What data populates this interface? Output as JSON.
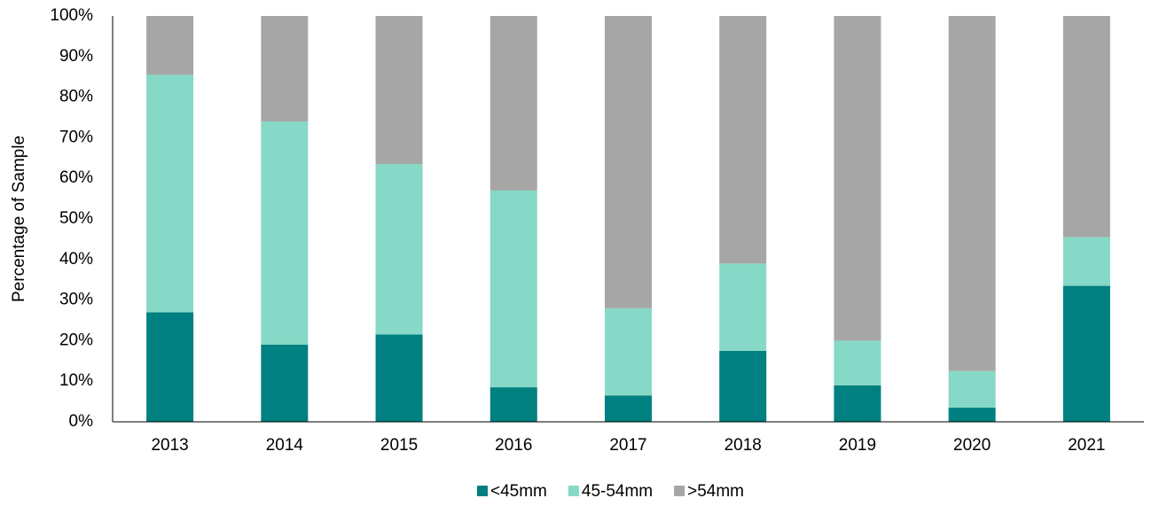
{
  "chart_data": {
    "type": "stacked_bar",
    "y_label": "Percentage of Sample",
    "categories": [
      "2013",
      "2014",
      "2015",
      "2016",
      "2017",
      "2018",
      "2019",
      "2020",
      "2021"
    ],
    "series": [
      {
        "name": "<45mm",
        "color": "#008080",
        "values": [
          27,
          19,
          21.5,
          8.5,
          6.5,
          17.5,
          9,
          3.5,
          33.5
        ]
      },
      {
        "name": "45-54mm",
        "color": "#86d9c6",
        "values": [
          58.5,
          55,
          42,
          48.5,
          21.5,
          21.5,
          11,
          9,
          12
        ]
      },
      {
        "name": ">54mm",
        "color": "#a6a6a6",
        "values": [
          14.5,
          26,
          36.5,
          43,
          72,
          61,
          80,
          87.5,
          54.5
        ]
      }
    ],
    "ylim": [
      0,
      100
    ],
    "yticks": [
      {
        "value": 0,
        "label": "0%"
      },
      {
        "value": 10,
        "label": "10%"
      },
      {
        "value": 20,
        "label": "20%"
      },
      {
        "value": 30,
        "label": "30%"
      },
      {
        "value": 40,
        "label": "40%"
      },
      {
        "value": 50,
        "label": "50%"
      },
      {
        "value": 60,
        "label": "60%"
      },
      {
        "value": 70,
        "label": "70%"
      },
      {
        "value": 80,
        "label": "80%"
      },
      {
        "value": 90,
        "label": "90%"
      },
      {
        "value": 100,
        "label": "100%"
      }
    ],
    "grid": false,
    "legend": "bottom"
  }
}
